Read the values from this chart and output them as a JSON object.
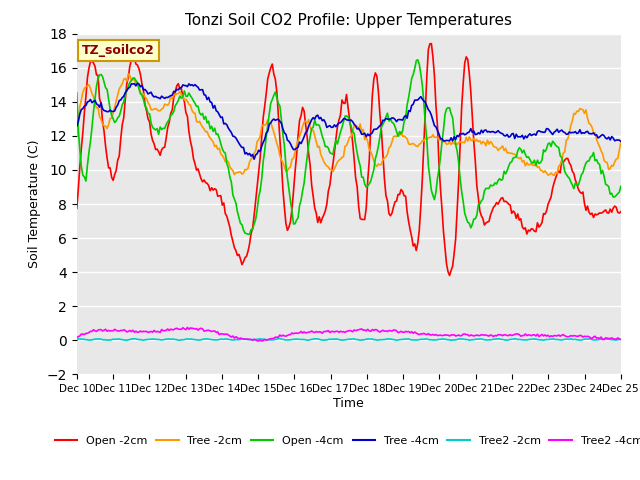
{
  "title": "Tonzi Soil CO2 Profile: Upper Temperatures",
  "ylabel": "Soil Temperature (C)",
  "xlabel": "Time",
  "annotation": "TZ_soilco2",
  "ylim": [
    -2,
    18
  ],
  "yticks": [
    -2,
    0,
    2,
    4,
    6,
    8,
    10,
    12,
    14,
    16,
    18
  ],
  "x_labels": [
    "Dec 10",
    "Dec 11",
    "Dec 12",
    "Dec 13",
    "Dec 14",
    "Dec 15",
    "Dec 16",
    "Dec 17",
    "Dec 18",
    "Dec 19",
    "Dec 20",
    "Dec 21",
    "Dec 22",
    "Dec 23",
    "Dec 24",
    "Dec 25"
  ],
  "series": {
    "Open -2cm": {
      "color": "#ff0000",
      "lw": 1.2
    },
    "Tree -2cm": {
      "color": "#ff9900",
      "lw": 1.2
    },
    "Open -4cm": {
      "color": "#00cc00",
      "lw": 1.2
    },
    "Tree -4cm": {
      "color": "#0000cc",
      "lw": 1.2
    },
    "Tree2 -2cm": {
      "color": "#00cccc",
      "lw": 1.2
    },
    "Tree2 -4cm": {
      "color": "#ff00ff",
      "lw": 1.2
    }
  },
  "bg_color": "#e8e8e8",
  "fig_color": "#ffffff"
}
